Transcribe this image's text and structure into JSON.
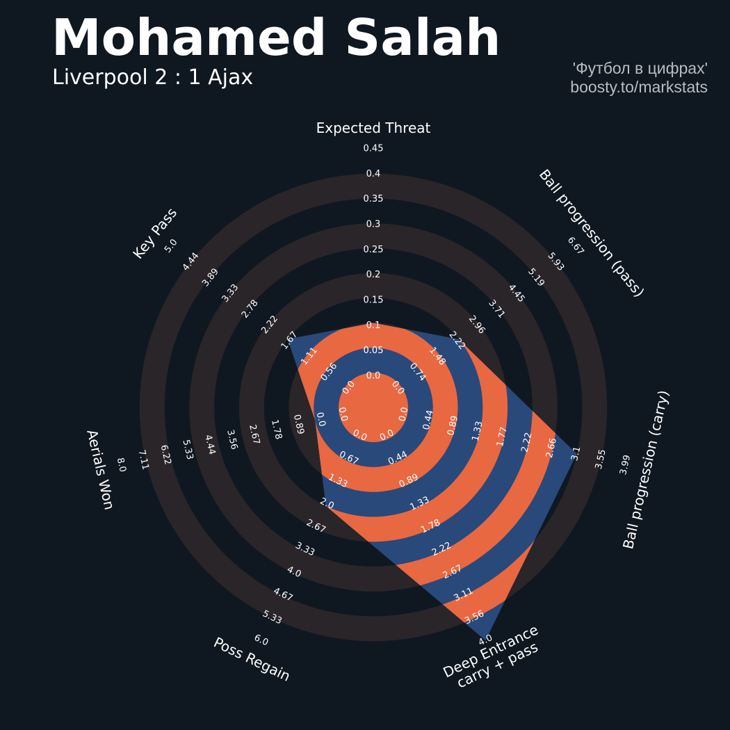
{
  "header": {
    "title": "Mohamed Salah",
    "subtitle": "Liverpool 2 : 1 Ajax",
    "credit_line1": "'Футбол в цифрах'",
    "credit_line2": "boosty.to/markstats"
  },
  "colors": {
    "background": "#0f1821",
    "ring_band": "#2a2529",
    "player_fill": "#29497a",
    "accent": "#e86842",
    "text": "#ffffff",
    "credit": "#b9bcc0"
  },
  "chart_data": {
    "type": "radar",
    "title": "Mohamed Salah",
    "subtitle": "Liverpool 2 : 1 Ajax",
    "grid": true,
    "axes": [
      {
        "label": "Expected Threat",
        "ticks": [
          "0.0",
          "0.05",
          "0.1",
          "0.15",
          "0.2",
          "0.25",
          "0.3",
          "0.35",
          "0.4",
          "0.45"
        ],
        "min": 0.0,
        "max": 0.45
      },
      {
        "label": "Ball progression (pass)",
        "ticks": [
          "0.0",
          "0.74",
          "1.48",
          "2.22",
          "2.96",
          "3.71",
          "4.45",
          "5.19",
          "5.93",
          "6.67"
        ],
        "min": 0.0,
        "max": 6.67
      },
      {
        "label": "Ball progression (carry)",
        "ticks": [
          "0.0",
          "0.44",
          "0.89",
          "1.33",
          "1.77",
          "2.22",
          "2.66",
          "3.1",
          "3.55",
          "3.99"
        ],
        "min": 0.0,
        "max": 3.99
      },
      {
        "label": "Deep Entrance\ncarry + pass",
        "ticks": [
          "0.0",
          "0.44",
          "0.89",
          "1.33",
          "1.78",
          "2.22",
          "2.67",
          "3.11",
          "3.56",
          "4.0"
        ],
        "min": 0.0,
        "max": 4.0
      },
      {
        "label": "Poss Regain",
        "ticks": [
          "0.0",
          "0.67",
          "1.33",
          "2.0",
          "2.67",
          "3.33",
          "4.0",
          "4.67",
          "5.33",
          "6.0"
        ],
        "min": 0.0,
        "max": 6.0
      },
      {
        "label": "Aerials Won",
        "ticks": [
          "0.0",
          "0.0",
          "0.89",
          "1.78",
          "2.67",
          "3.56",
          "4.44",
          "5.33",
          "6.22",
          "7.11",
          "8.0"
        ],
        "min": 0.0,
        "max": 8.0
      },
      {
        "label": "Key Pass",
        "ticks": [
          "0.0",
          "0.56",
          "1.11",
          "1.67",
          "2.22",
          "2.78",
          "3.33",
          "3.89",
          "4.44",
          "5.0"
        ],
        "min": 0.0,
        "max": 5.0
      }
    ],
    "series": [
      {
        "name": "Mohamed Salah",
        "values": [
          0.1,
          2.22,
          3.1,
          4.0,
          2.0,
          0.89,
          1.67
        ]
      }
    ]
  }
}
